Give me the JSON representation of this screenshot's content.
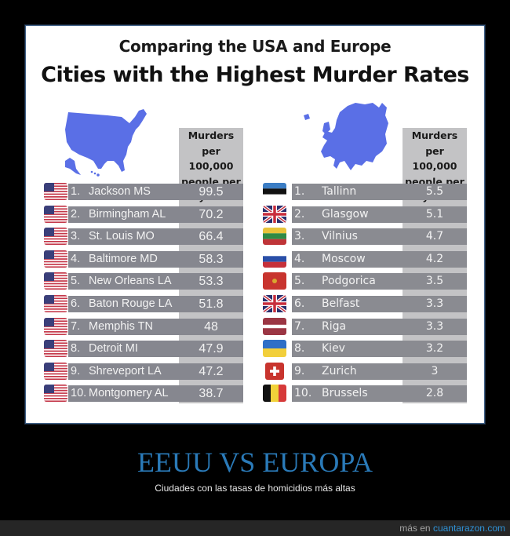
{
  "infographic": {
    "title_line1": "Comparing the USA and Europe",
    "title_line2": "Cities with the Highest Murder Rates",
    "column_header": [
      "Murders per",
      "100,000",
      "people per",
      "year"
    ],
    "usa": {
      "map_icon": "usa-map",
      "map_color": "#5a6fe6",
      "rows": [
        {
          "rank": "1.",
          "city": "Jackson MS",
          "value": "99.5",
          "flag": "usa-flag"
        },
        {
          "rank": "2.",
          "city": "Birmingham AL",
          "value": "70.2",
          "flag": "usa-flag"
        },
        {
          "rank": "3.",
          "city": "St. Louis MO",
          "value": "66.4",
          "flag": "usa-flag"
        },
        {
          "rank": "4.",
          "city": "Baltimore MD",
          "value": "58.3",
          "flag": "usa-flag"
        },
        {
          "rank": "5.",
          "city": "New Orleans LA",
          "value": "53.3",
          "flag": "usa-flag"
        },
        {
          "rank": "6.",
          "city": "Baton Rouge LA",
          "value": "51.8",
          "flag": "usa-flag"
        },
        {
          "rank": "7.",
          "city": "Memphis TN",
          "value": "48",
          "flag": "usa-flag"
        },
        {
          "rank": "8.",
          "city": "Detroit MI",
          "value": "47.9",
          "flag": "usa-flag"
        },
        {
          "rank": "9.",
          "city": "Shreveport LA",
          "value": "47.2",
          "flag": "usa-flag"
        },
        {
          "rank": "10.",
          "city": "Montgomery AL",
          "value": "38.7",
          "flag": "usa-flag"
        }
      ]
    },
    "europe": {
      "map_icon": "europe-map",
      "map_color": "#5a6fe6",
      "rows": [
        {
          "rank": "1.",
          "city": "Tallinn",
          "value": "5.5",
          "flag": "estonia-flag"
        },
        {
          "rank": "2.",
          "city": "Glasgow",
          "value": "5.1",
          "flag": "uk-flag"
        },
        {
          "rank": "3.",
          "city": "Vilnius",
          "value": "4.7",
          "flag": "lithuania-flag"
        },
        {
          "rank": "4.",
          "city": "Moscow",
          "value": "4.2",
          "flag": "russia-flag"
        },
        {
          "rank": "5.",
          "city": "Podgorica",
          "value": "3.5",
          "flag": "montenegro-flag"
        },
        {
          "rank": "6.",
          "city": "Belfast",
          "value": "3.3",
          "flag": "uk-flag"
        },
        {
          "rank": "7.",
          "city": "Riga",
          "value": "3.3",
          "flag": "latvia-flag"
        },
        {
          "rank": "8.",
          "city": "Kiev",
          "value": "3.2",
          "flag": "ukraine-flag"
        },
        {
          "rank": "9.",
          "city": "Zurich",
          "value": "3",
          "flag": "switzerland-flag"
        },
        {
          "rank": "10.",
          "city": "Brussels",
          "value": "2.8",
          "flag": "belgium-flag"
        }
      ]
    }
  },
  "caption": {
    "title": "EEUU VS EUROPA",
    "subtitle": "Ciudades con las tasas de homicidios más altas"
  },
  "footer": {
    "prefix": "más en",
    "site": "cuantarazon.com"
  },
  "colors": {
    "bar": "#86878f",
    "column_bg": "#c3c3c5",
    "caption_title": "#2a7ab8",
    "footer_link": "#2f92d6"
  },
  "chart_data": {
    "type": "table",
    "title": "Comparing the USA and Europe — Cities with the Highest Murder Rates",
    "ylabel": "Murders per 100,000 people per year",
    "series": [
      {
        "name": "USA",
        "categories": [
          "Jackson MS",
          "Birmingham AL",
          "St. Louis MO",
          "Baltimore MD",
          "New Orleans LA",
          "Baton Rouge LA",
          "Memphis TN",
          "Detroit MI",
          "Shreveport LA",
          "Montgomery AL"
        ],
        "values": [
          99.5,
          70.2,
          66.4,
          58.3,
          53.3,
          51.8,
          48,
          47.9,
          47.2,
          38.7
        ]
      },
      {
        "name": "Europe",
        "categories": [
          "Tallinn",
          "Glasgow",
          "Vilnius",
          "Moscow",
          "Podgorica",
          "Belfast",
          "Riga",
          "Kiev",
          "Zurich",
          "Brussels"
        ],
        "values": [
          5.5,
          5.1,
          4.7,
          4.2,
          3.5,
          3.3,
          3.3,
          3.2,
          3,
          2.8
        ]
      }
    ]
  }
}
